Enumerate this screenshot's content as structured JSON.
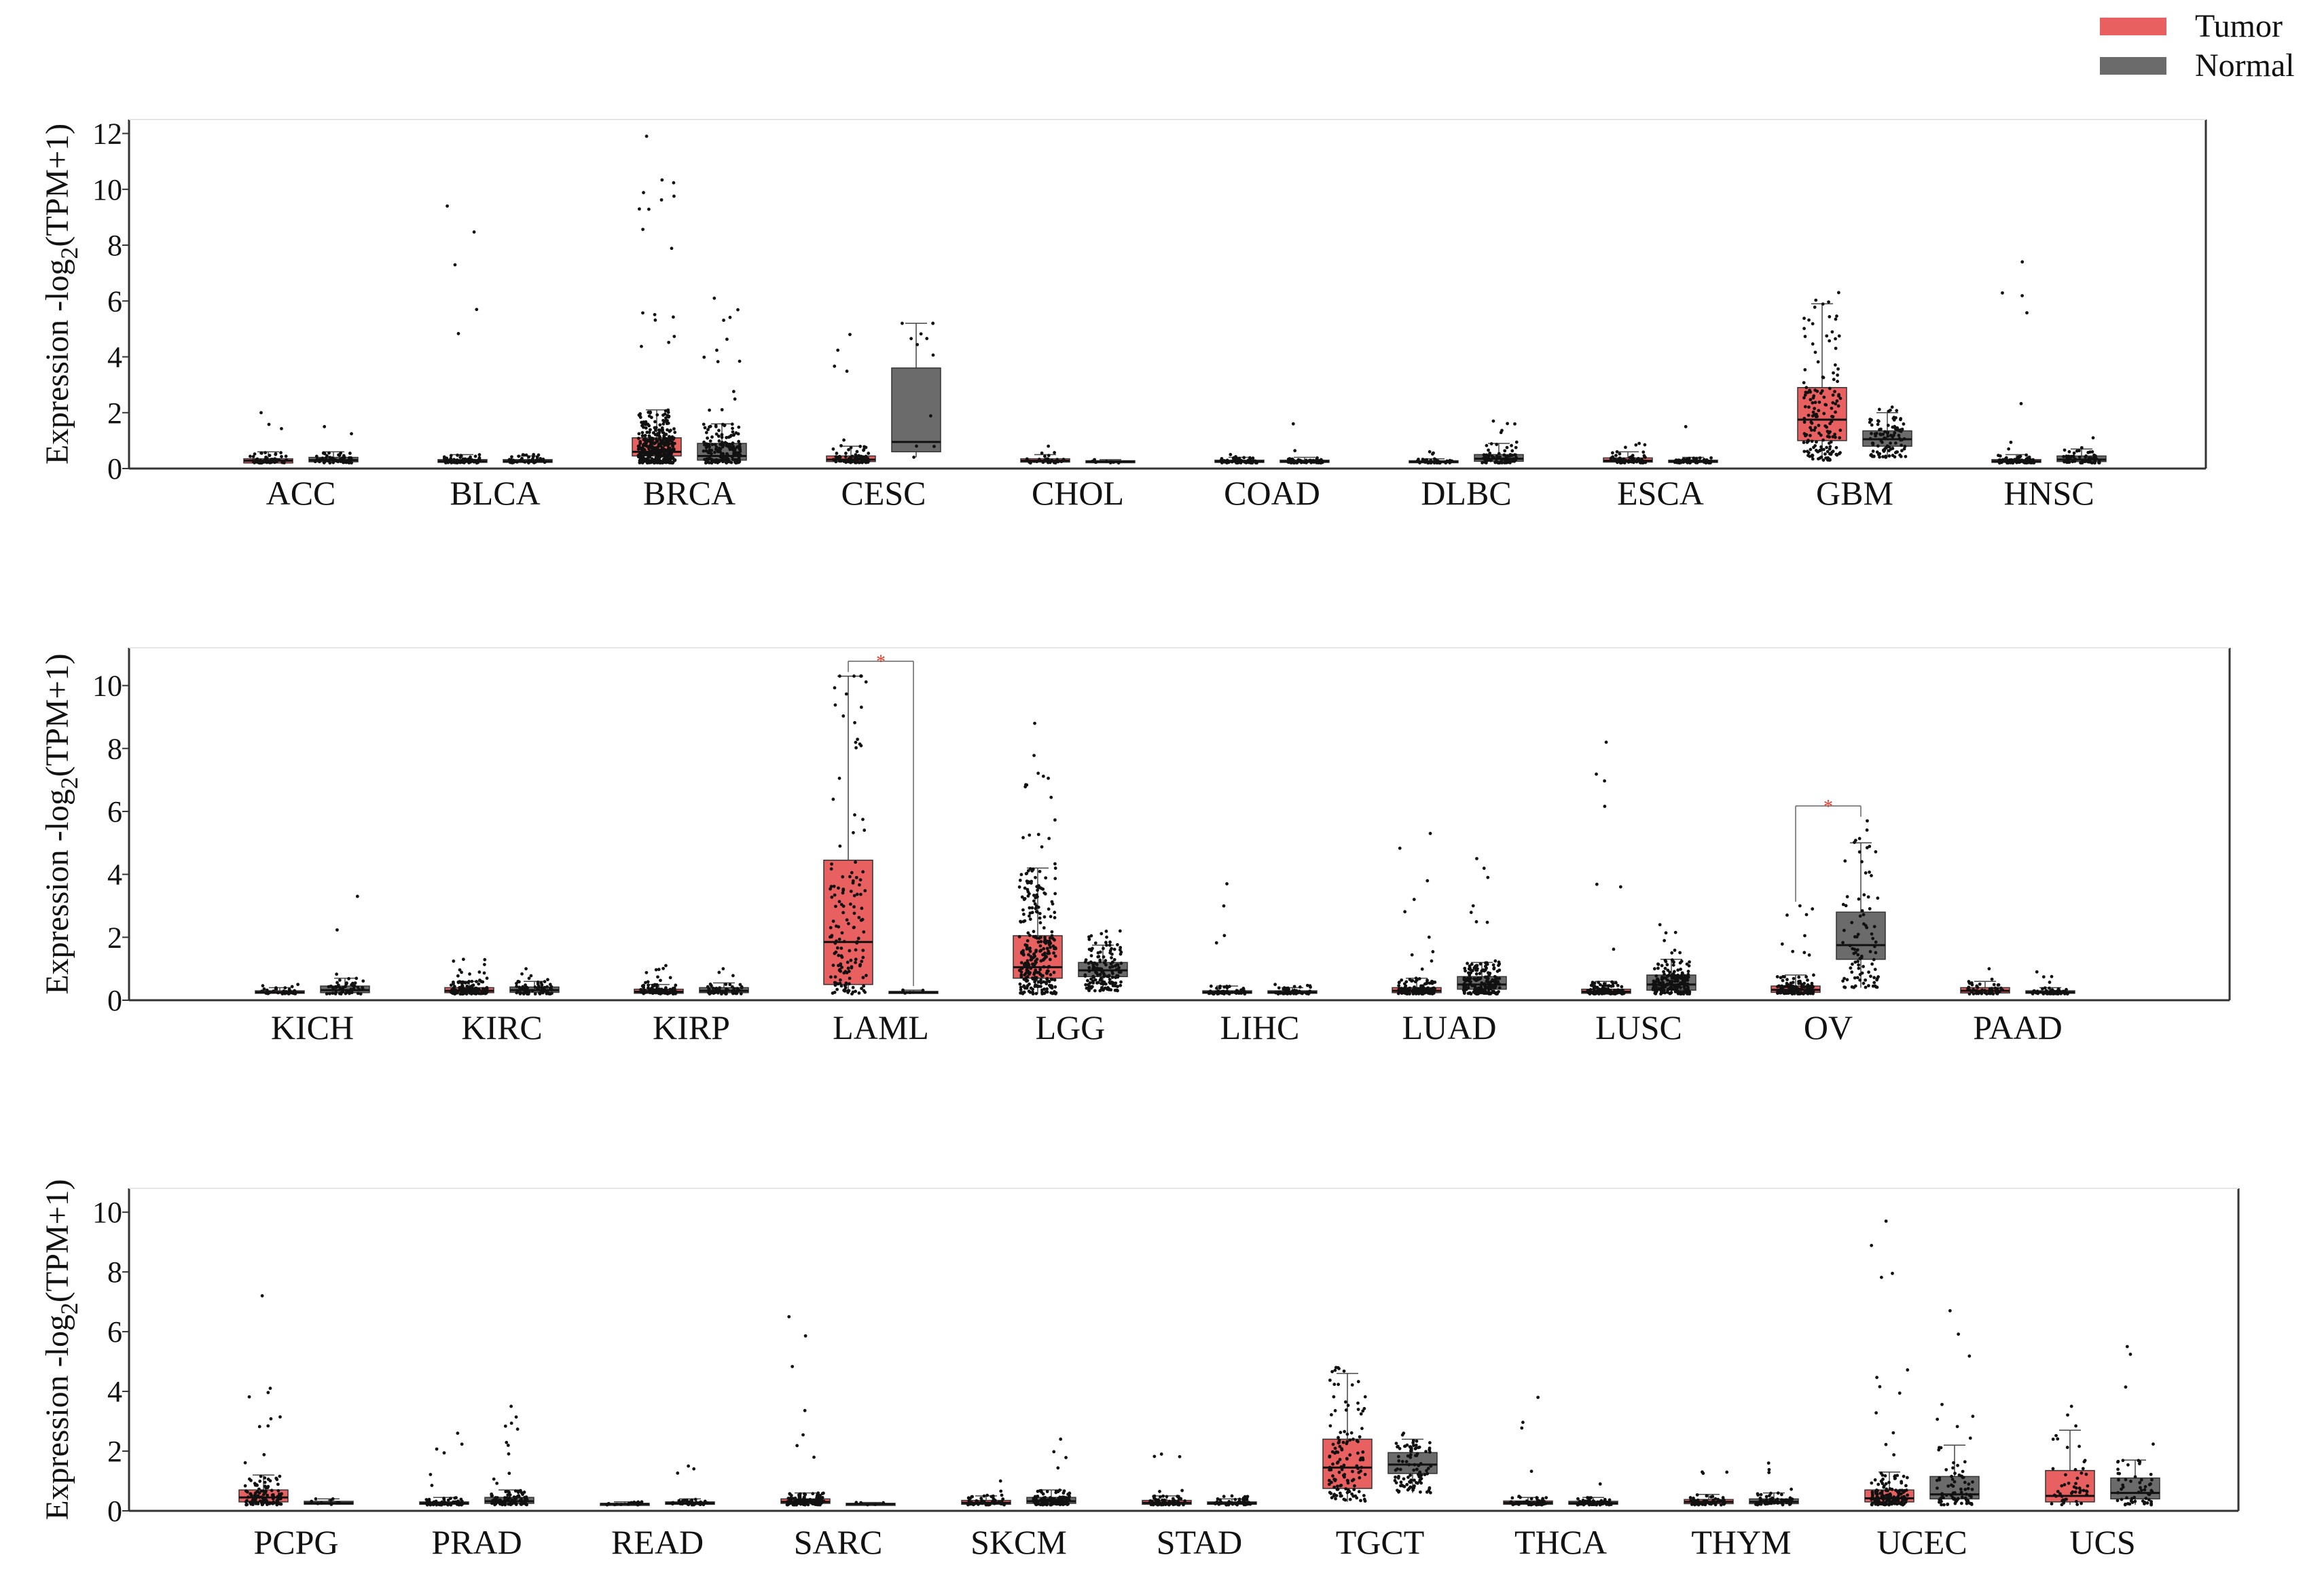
{
  "legend": {
    "tumor_label": "Tumor",
    "normal_label": "Normal"
  },
  "colors": {
    "tumor": "#e8605f",
    "normal": "#6b6b6b",
    "axis": "#333333",
    "significance": "#e83a2a"
  },
  "chart_data": [
    {
      "type": "box",
      "ylabel": "Expression -log2(TPM+1)",
      "ylabel_main": "Expression -log",
      "ylabel_sub": "2",
      "ylabel_tail": "(TPM+1)",
      "ylim": [
        0,
        12.5
      ],
      "yticks": [
        "0",
        "2",
        "4",
        "6",
        "8",
        "10",
        "12"
      ],
      "categories": [
        "ACC",
        "BLCA",
        "BRCA",
        "CESC",
        "CHOL",
        "COAD",
        "DLBC",
        "ESCA",
        "GBM",
        "HNSC"
      ],
      "series": [
        {
          "name": "Tumor",
          "boxes": [
            {
              "min": 0.2,
              "q1": 0.2,
              "median": 0.28,
              "q3": 0.35,
              "max": 0.6,
              "outlier_max": 2.0,
              "n": 60
            },
            {
              "min": 0.2,
              "q1": 0.22,
              "median": 0.26,
              "q3": 0.32,
              "max": 0.5,
              "outlier_max": 9.4,
              "n": 80
            },
            {
              "min": 0.2,
              "q1": 0.45,
              "median": 0.6,
              "q3": 1.1,
              "max": 2.1,
              "outlier_max": 11.9,
              "n": 400
            },
            {
              "min": 0.2,
              "q1": 0.25,
              "median": 0.32,
              "q3": 0.45,
              "max": 0.8,
              "outlier_max": 4.8,
              "n": 90
            },
            {
              "min": 0.2,
              "q1": 0.23,
              "median": 0.28,
              "q3": 0.35,
              "max": 0.5,
              "outlier_max": 0.8,
              "n": 30
            },
            {
              "min": 0.2,
              "q1": 0.22,
              "median": 0.25,
              "q3": 0.3,
              "max": 0.4,
              "outlier_max": 0.5,
              "n": 60
            },
            {
              "min": 0.2,
              "q1": 0.21,
              "median": 0.24,
              "q3": 0.28,
              "max": 0.35,
              "outlier_max": 0.6,
              "n": 30
            },
            {
              "min": 0.2,
              "q1": 0.23,
              "median": 0.28,
              "q3": 0.38,
              "max": 0.6,
              "outlier_max": 0.9,
              "n": 60
            },
            {
              "min": 0.3,
              "q1": 1.0,
              "median": 1.75,
              "q3": 2.9,
              "max": 5.9,
              "outlier_max": 6.3,
              "n": 160
            },
            {
              "min": 0.2,
              "q1": 0.22,
              "median": 0.26,
              "q3": 0.32,
              "max": 0.5,
              "outlier_max": 7.4,
              "n": 90
            }
          ]
        },
        {
          "name": "Normal",
          "boxes": [
            {
              "min": 0.2,
              "q1": 0.24,
              "median": 0.3,
              "q3": 0.4,
              "max": 0.6,
              "outlier_max": 1.5,
              "n": 60
            },
            {
              "min": 0.2,
              "q1": 0.22,
              "median": 0.26,
              "q3": 0.32,
              "max": 0.45,
              "outlier_max": 0.5,
              "n": 40
            },
            {
              "min": 0.2,
              "q1": 0.3,
              "median": 0.45,
              "q3": 0.9,
              "max": 1.6,
              "outlier_max": 6.1,
              "n": 180
            },
            {
              "min": 0.4,
              "q1": 0.6,
              "median": 0.95,
              "q3": 3.6,
              "max": 5.2,
              "outlier_max": 5.2,
              "n": 12
            },
            {
              "min": 0.2,
              "q1": 0.22,
              "median": 0.25,
              "q3": 0.28,
              "max": 0.32,
              "outlier_max": 0.32,
              "n": 10
            },
            {
              "min": 0.2,
              "q1": 0.22,
              "median": 0.25,
              "q3": 0.3,
              "max": 0.4,
              "outlier_max": 1.6,
              "n": 60
            },
            {
              "min": 0.2,
              "q1": 0.26,
              "median": 0.35,
              "q3": 0.5,
              "max": 0.9,
              "outlier_max": 1.7,
              "n": 80
            },
            {
              "min": 0.2,
              "q1": 0.22,
              "median": 0.25,
              "q3": 0.3,
              "max": 0.4,
              "outlier_max": 1.5,
              "n": 60
            },
            {
              "min": 0.4,
              "q1": 0.8,
              "median": 1.05,
              "q3": 1.35,
              "max": 2.0,
              "outlier_max": 2.2,
              "n": 100
            },
            {
              "min": 0.2,
              "q1": 0.25,
              "median": 0.32,
              "q3": 0.45,
              "max": 0.7,
              "outlier_max": 1.1,
              "n": 60
            }
          ]
        }
      ],
      "significance": []
    },
    {
      "type": "box",
      "ylabel": "Expression -log2(TPM+1)",
      "ylabel_main": "Expression -log",
      "ylabel_sub": "2",
      "ylabel_tail": "(TPM+1)",
      "ylim": [
        0,
        11.2
      ],
      "yticks": [
        "0",
        "2",
        "4",
        "6",
        "8",
        "10"
      ],
      "categories": [
        "KICH",
        "KIRC",
        "KIRP",
        "LAML",
        "LGG",
        "LIHC",
        "LUAD",
        "LUSC",
        "OV",
        "PAAD"
      ],
      "series": [
        {
          "name": "Tumor",
          "boxes": [
            {
              "min": 0.2,
              "q1": 0.22,
              "median": 0.25,
              "q3": 0.3,
              "max": 0.4,
              "outlier_max": 0.5,
              "n": 40
            },
            {
              "min": 0.2,
              "q1": 0.24,
              "median": 0.3,
              "q3": 0.4,
              "max": 0.6,
              "outlier_max": 1.3,
              "n": 150
            },
            {
              "min": 0.2,
              "q1": 0.22,
              "median": 0.27,
              "q3": 0.35,
              "max": 0.5,
              "outlier_max": 1.1,
              "n": 100
            },
            {
              "min": 0.2,
              "q1": 0.5,
              "median": 1.85,
              "q3": 4.45,
              "max": 10.3,
              "outlier_max": 10.3,
              "n": 150
            },
            {
              "min": 0.2,
              "q1": 0.7,
              "median": 1.05,
              "q3": 2.05,
              "max": 4.2,
              "outlier_max": 8.8,
              "n": 300
            },
            {
              "min": 0.2,
              "q1": 0.22,
              "median": 0.25,
              "q3": 0.3,
              "max": 0.45,
              "outlier_max": 3.7,
              "n": 60
            },
            {
              "min": 0.2,
              "q1": 0.24,
              "median": 0.3,
              "q3": 0.4,
              "max": 0.7,
              "outlier_max": 5.3,
              "n": 150
            },
            {
              "min": 0.2,
              "q1": 0.22,
              "median": 0.27,
              "q3": 0.35,
              "max": 0.6,
              "outlier_max": 8.2,
              "n": 120
            },
            {
              "min": 0.2,
              "q1": 0.25,
              "median": 0.33,
              "q3": 0.45,
              "max": 0.8,
              "outlier_max": 3.0,
              "n": 140
            },
            {
              "min": 0.2,
              "q1": 0.23,
              "median": 0.3,
              "q3": 0.4,
              "max": 0.6,
              "outlier_max": 1.0,
              "n": 60
            }
          ]
        },
        {
          "name": "Normal",
          "boxes": [
            {
              "min": 0.2,
              "q1": 0.24,
              "median": 0.32,
              "q3": 0.45,
              "max": 0.7,
              "outlier_max": 3.3,
              "n": 50
            },
            {
              "min": 0.2,
              "q1": 0.25,
              "median": 0.32,
              "q3": 0.42,
              "max": 0.6,
              "outlier_max": 1.0,
              "n": 70
            },
            {
              "min": 0.2,
              "q1": 0.24,
              "median": 0.3,
              "q3": 0.4,
              "max": 0.55,
              "outlier_max": 1.0,
              "n": 50
            },
            {
              "min": 0.2,
              "q1": 0.22,
              "median": 0.25,
              "q3": 0.28,
              "max": 0.32,
              "outlier_max": 0.32,
              "n": 5
            },
            {
              "min": 0.3,
              "q1": 0.75,
              "median": 0.95,
              "q3": 1.2,
              "max": 1.75,
              "outlier_max": 2.2,
              "n": 150
            },
            {
              "min": 0.2,
              "q1": 0.22,
              "median": 0.25,
              "q3": 0.3,
              "max": 0.4,
              "outlier_max": 0.5,
              "n": 50
            },
            {
              "min": 0.2,
              "q1": 0.35,
              "median": 0.5,
              "q3": 0.75,
              "max": 1.2,
              "outlier_max": 4.5,
              "n": 200
            },
            {
              "min": 0.2,
              "q1": 0.32,
              "median": 0.5,
              "q3": 0.8,
              "max": 1.3,
              "outlier_max": 2.4,
              "n": 200
            },
            {
              "min": 0.4,
              "q1": 1.3,
              "median": 1.75,
              "q3": 2.8,
              "max": 5.0,
              "outlier_max": 5.7,
              "n": 90
            },
            {
              "min": 0.2,
              "q1": 0.22,
              "median": 0.25,
              "q3": 0.3,
              "max": 0.4,
              "outlier_max": 0.9,
              "n": 50
            }
          ]
        }
      ],
      "significance": [
        {
          "category_index": 3,
          "label": "*"
        },
        {
          "category_index": 8,
          "label": "*"
        }
      ]
    },
    {
      "type": "box",
      "ylabel": "Expression -log2(TPM+1)",
      "ylabel_main": "Expression -log",
      "ylabel_sub": "2",
      "ylabel_tail": "(TPM+1)",
      "ylim": [
        0,
        10.8
      ],
      "yticks": [
        "0",
        "2",
        "4",
        "6",
        "8",
        "10"
      ],
      "categories": [
        "PCPG",
        "PRAD",
        "READ",
        "SARC",
        "SKCM",
        "STAD",
        "TGCT",
        "THCA",
        "THYM",
        "UCEC",
        "UCS"
      ],
      "series": [
        {
          "name": "Tumor",
          "boxes": [
            {
              "min": 0.2,
              "q1": 0.3,
              "median": 0.45,
              "q3": 0.7,
              "max": 1.2,
              "outlier_max": 7.2,
              "n": 120
            },
            {
              "min": 0.2,
              "q1": 0.22,
              "median": 0.25,
              "q3": 0.3,
              "max": 0.45,
              "outlier_max": 2.6,
              "n": 80
            },
            {
              "min": 0.2,
              "q1": 0.21,
              "median": 0.23,
              "q3": 0.25,
              "max": 0.3,
              "outlier_max": 0.3,
              "n": 20
            },
            {
              "min": 0.2,
              "q1": 0.25,
              "median": 0.3,
              "q3": 0.4,
              "max": 0.6,
              "outlier_max": 6.5,
              "n": 120
            },
            {
              "min": 0.2,
              "q1": 0.22,
              "median": 0.27,
              "q3": 0.35,
              "max": 0.5,
              "outlier_max": 1.0,
              "n": 60
            },
            {
              "min": 0.2,
              "q1": 0.22,
              "median": 0.27,
              "q3": 0.35,
              "max": 0.5,
              "outlier_max": 1.9,
              "n": 70
            },
            {
              "min": 0.3,
              "q1": 0.75,
              "median": 1.45,
              "q3": 2.4,
              "max": 4.6,
              "outlier_max": 4.8,
              "n": 130
            },
            {
              "min": 0.2,
              "q1": 0.22,
              "median": 0.27,
              "q3": 0.33,
              "max": 0.45,
              "outlier_max": 3.8,
              "n": 60
            },
            {
              "min": 0.2,
              "q1": 0.24,
              "median": 0.3,
              "q3": 0.38,
              "max": 0.55,
              "outlier_max": 1.3,
              "n": 60
            },
            {
              "min": 0.2,
              "q1": 0.3,
              "median": 0.42,
              "q3": 0.7,
              "max": 1.3,
              "outlier_max": 9.7,
              "n": 150
            },
            {
              "min": 0.2,
              "q1": 0.3,
              "median": 0.5,
              "q3": 1.35,
              "max": 2.7,
              "outlier_max": 3.5,
              "n": 50
            }
          ]
        },
        {
          "name": "Normal",
          "boxes": [
            {
              "min": 0.2,
              "q1": 0.22,
              "median": 0.26,
              "q3": 0.32,
              "max": 0.4,
              "outlier_max": 0.4,
              "n": 10
            },
            {
              "min": 0.2,
              "q1": 0.25,
              "median": 0.32,
              "q3": 0.45,
              "max": 0.7,
              "outlier_max": 3.5,
              "n": 100
            },
            {
              "min": 0.2,
              "q1": 0.22,
              "median": 0.25,
              "q3": 0.3,
              "max": 0.4,
              "outlier_max": 1.5,
              "n": 40
            },
            {
              "min": 0.2,
              "q1": 0.21,
              "median": 0.23,
              "q3": 0.25,
              "max": 0.28,
              "outlier_max": 0.28,
              "n": 5
            },
            {
              "min": 0.2,
              "q1": 0.25,
              "median": 0.32,
              "q3": 0.45,
              "max": 0.7,
              "outlier_max": 2.4,
              "n": 120
            },
            {
              "min": 0.2,
              "q1": 0.22,
              "median": 0.25,
              "q3": 0.3,
              "max": 0.4,
              "outlier_max": 0.5,
              "n": 50
            },
            {
              "min": 0.6,
              "q1": 1.25,
              "median": 1.55,
              "q3": 1.95,
              "max": 2.4,
              "outlier_max": 2.6,
              "n": 100
            },
            {
              "min": 0.2,
              "q1": 0.22,
              "median": 0.26,
              "q3": 0.32,
              "max": 0.45,
              "outlier_max": 0.9,
              "n": 60
            },
            {
              "min": 0.2,
              "q1": 0.24,
              "median": 0.3,
              "q3": 0.4,
              "max": 0.6,
              "outlier_max": 1.6,
              "n": 70
            },
            {
              "min": 0.2,
              "q1": 0.4,
              "median": 0.55,
              "q3": 1.15,
              "max": 2.2,
              "outlier_max": 6.7,
              "n": 80
            },
            {
              "min": 0.2,
              "q1": 0.4,
              "median": 0.6,
              "q3": 1.1,
              "max": 1.7,
              "outlier_max": 5.5,
              "n": 60
            }
          ]
        }
      ],
      "significance": []
    }
  ]
}
